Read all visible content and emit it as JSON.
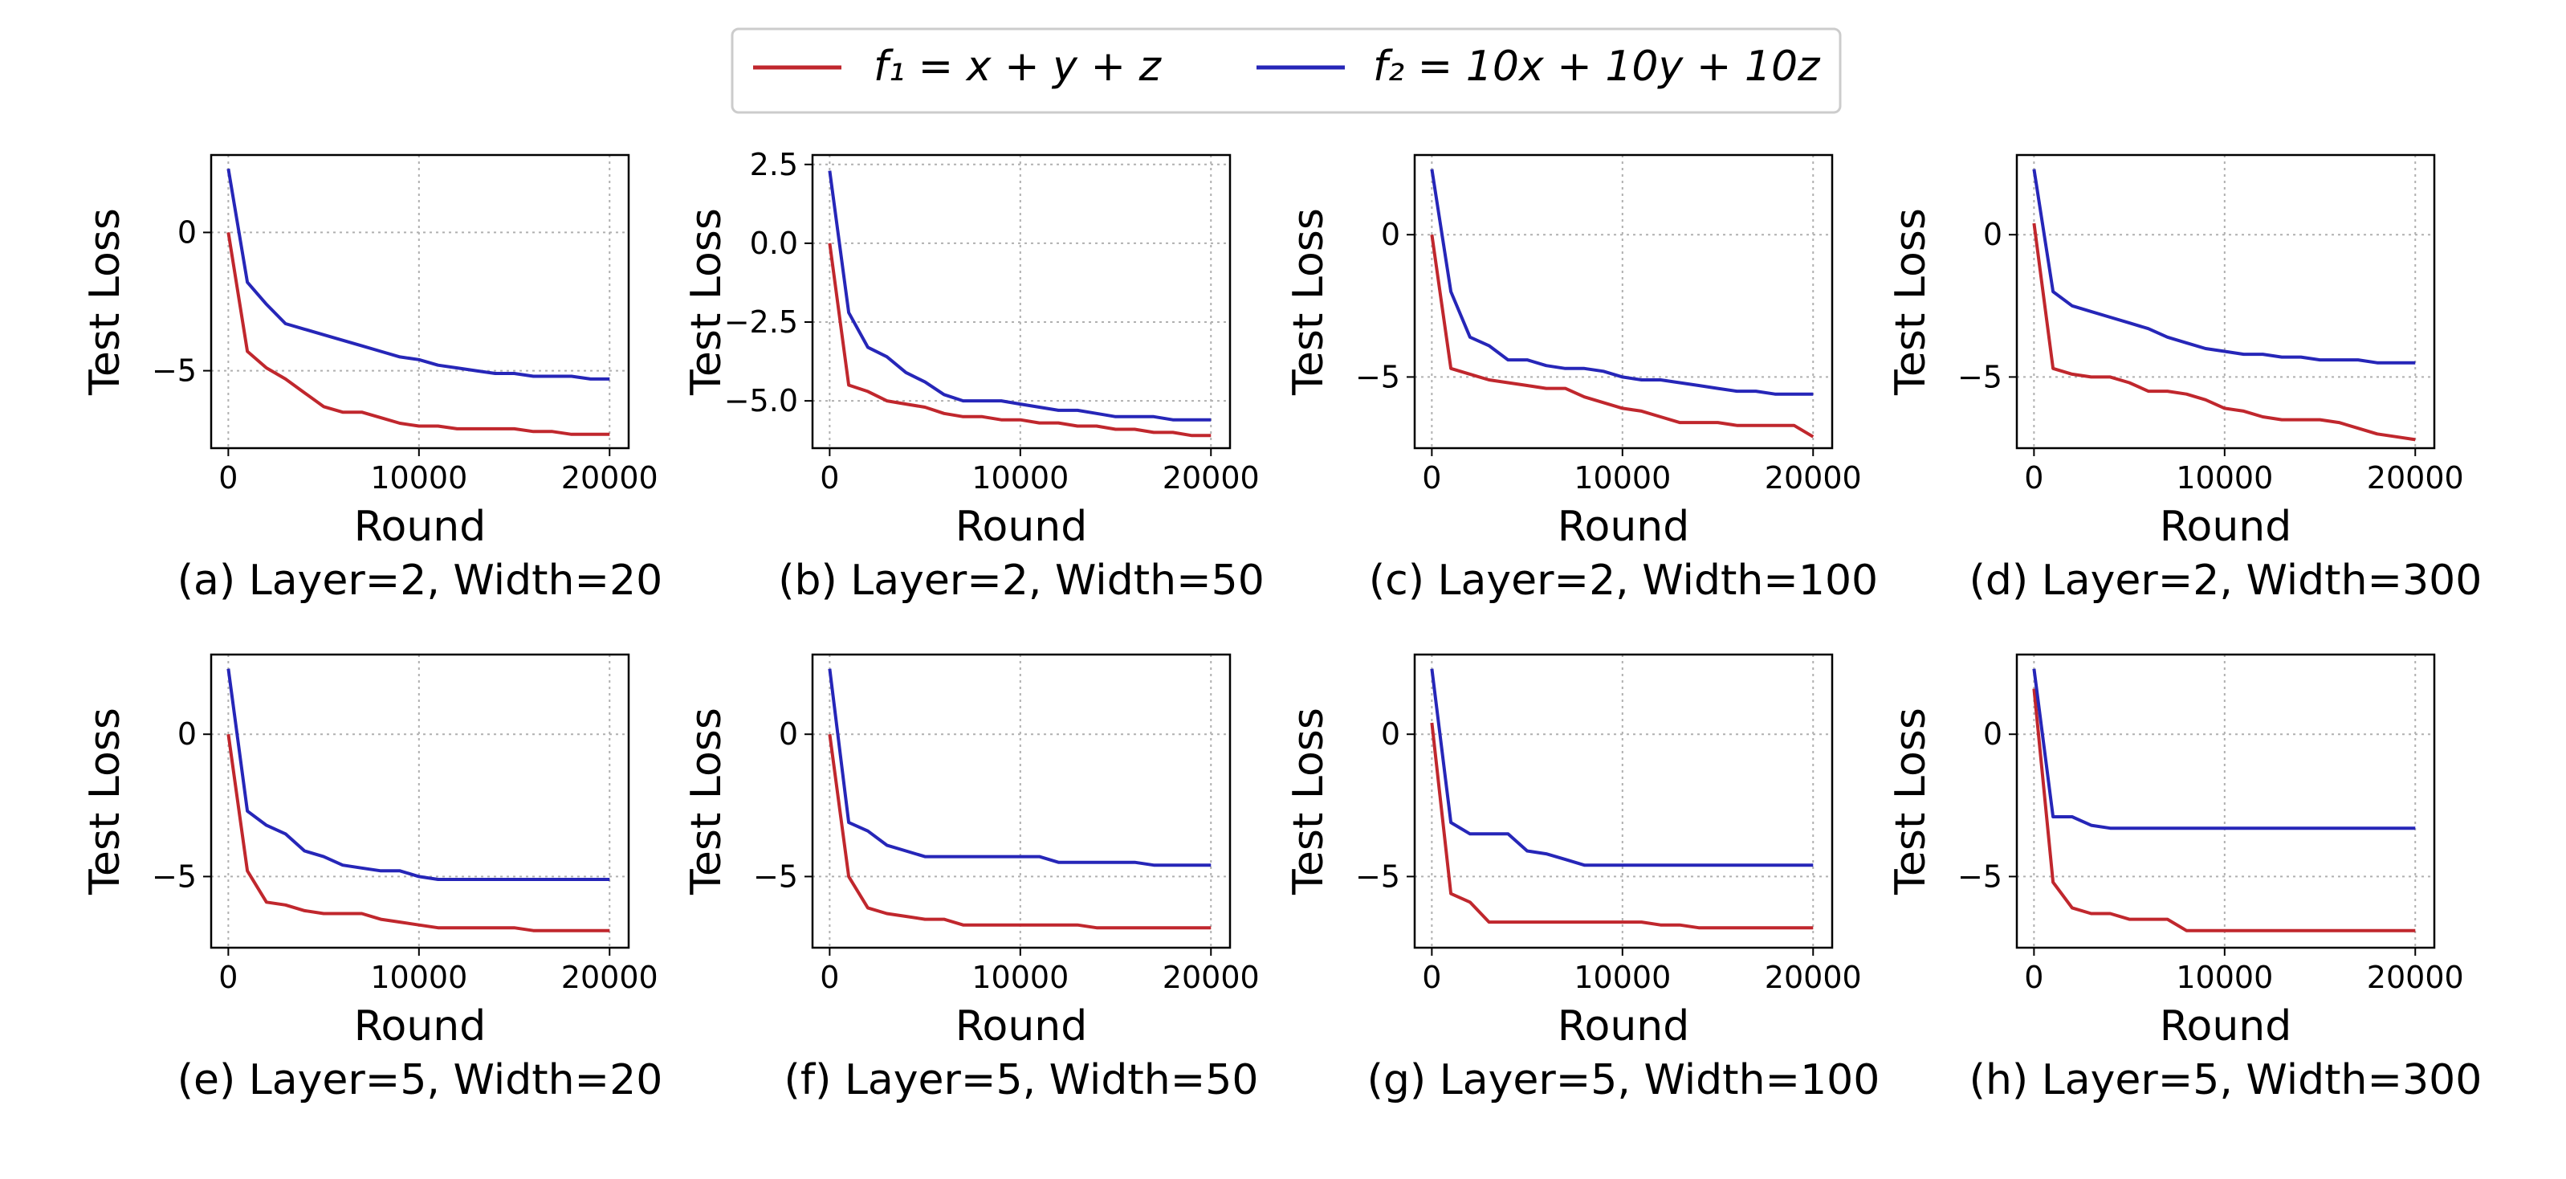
{
  "legend": {
    "entries": [
      {
        "label": "f₁ = x + y + z",
        "color": "#c0272d"
      },
      {
        "label": "f₂ = 10x + 10y + 10z",
        "color": "#2626b8"
      }
    ],
    "placement": "top-center"
  },
  "chart_data": [
    {
      "type": "line",
      "caption": "(a) Layer=2, Width=20",
      "xlabel": "Round",
      "ylabel": "Test Loss",
      "xlim": [
        -900,
        21000
      ],
      "ylim": [
        -7.8,
        2.8
      ],
      "xticks": [
        0,
        10000,
        20000
      ],
      "xtick_labels": [
        "0",
        "10000",
        "20000"
      ],
      "yticks": [
        0,
        -5
      ],
      "ytick_labels": [
        "0",
        "−5"
      ],
      "grid": true,
      "x": [
        0,
        1000,
        2000,
        3000,
        4000,
        5000,
        6000,
        7000,
        8000,
        9000,
        10000,
        11000,
        12000,
        13000,
        14000,
        15000,
        16000,
        17000,
        18000,
        19000,
        20000
      ],
      "series": [
        {
          "name": "f₁ = x + y + z",
          "color": "#c0272d",
          "values": [
            0.0,
            -4.3,
            -4.9,
            -5.3,
            -5.8,
            -6.3,
            -6.5,
            -6.5,
            -6.7,
            -6.9,
            -7.0,
            -7.0,
            -7.1,
            -7.1,
            -7.1,
            -7.1,
            -7.2,
            -7.2,
            -7.3,
            -7.3,
            -7.3
          ]
        },
        {
          "name": "f₂ = 10x + 10y + 10z",
          "color": "#2626b8",
          "values": [
            2.3,
            -1.8,
            -2.6,
            -3.3,
            -3.5,
            -3.7,
            -3.9,
            -4.1,
            -4.3,
            -4.5,
            -4.6,
            -4.8,
            -4.9,
            -5.0,
            -5.1,
            -5.1,
            -5.2,
            -5.2,
            -5.2,
            -5.3,
            -5.3
          ]
        }
      ]
    },
    {
      "type": "line",
      "caption": "(b) Layer=2, Width=50",
      "xlabel": "Round",
      "ylabel": "Test Loss",
      "xlim": [
        -900,
        21000
      ],
      "ylim": [
        -6.5,
        2.8
      ],
      "xticks": [
        0,
        10000,
        20000
      ],
      "xtick_labels": [
        "0",
        "10000",
        "20000"
      ],
      "yticks": [
        2.5,
        0,
        -2.5,
        -5
      ],
      "ytick_labels": [
        "2.5",
        "0.0",
        "−2.5",
        "−5.0"
      ],
      "grid": true,
      "x": [
        0,
        1000,
        2000,
        3000,
        4000,
        5000,
        6000,
        7000,
        8000,
        9000,
        10000,
        11000,
        12000,
        13000,
        14000,
        15000,
        16000,
        17000,
        18000,
        19000,
        20000
      ],
      "series": [
        {
          "name": "f₁ = x + y + z",
          "color": "#c0272d",
          "values": [
            0.0,
            -4.5,
            -4.7,
            -5.0,
            -5.1,
            -5.2,
            -5.4,
            -5.5,
            -5.5,
            -5.6,
            -5.6,
            -5.7,
            -5.7,
            -5.8,
            -5.8,
            -5.9,
            -5.9,
            -6.0,
            -6.0,
            -6.1,
            -6.1
          ]
        },
        {
          "name": "f₂ = 10x + 10y + 10z",
          "color": "#2626b8",
          "values": [
            2.3,
            -2.2,
            -3.3,
            -3.6,
            -4.1,
            -4.4,
            -4.8,
            -5.0,
            -5.0,
            -5.0,
            -5.1,
            -5.2,
            -5.3,
            -5.3,
            -5.4,
            -5.5,
            -5.5,
            -5.5,
            -5.6,
            -5.6,
            -5.6
          ]
        }
      ]
    },
    {
      "type": "line",
      "caption": "(c) Layer=2, Width=100",
      "xlabel": "Round",
      "ylabel": "Test Loss",
      "xlim": [
        -900,
        21000
      ],
      "ylim": [
        -7.5,
        2.8
      ],
      "xticks": [
        0,
        10000,
        20000
      ],
      "xtick_labels": [
        "0",
        "10000",
        "20000"
      ],
      "yticks": [
        0,
        -5
      ],
      "ytick_labels": [
        "0",
        "−5"
      ],
      "grid": true,
      "x": [
        0,
        1000,
        2000,
        3000,
        4000,
        5000,
        6000,
        7000,
        8000,
        9000,
        10000,
        11000,
        12000,
        13000,
        14000,
        15000,
        16000,
        17000,
        18000,
        19000,
        20000
      ],
      "series": [
        {
          "name": "f₁ = x + y + z",
          "color": "#c0272d",
          "values": [
            0.0,
            -4.7,
            -4.9,
            -5.1,
            -5.2,
            -5.3,
            -5.4,
            -5.4,
            -5.7,
            -5.9,
            -6.1,
            -6.2,
            -6.4,
            -6.6,
            -6.6,
            -6.6,
            -6.7,
            -6.7,
            -6.7,
            -6.7,
            -7.1
          ]
        },
        {
          "name": "f₂ = 10x + 10y + 10z",
          "color": "#2626b8",
          "values": [
            2.3,
            -2.0,
            -3.6,
            -3.9,
            -4.4,
            -4.4,
            -4.6,
            -4.7,
            -4.7,
            -4.8,
            -5.0,
            -5.1,
            -5.1,
            -5.2,
            -5.3,
            -5.4,
            -5.5,
            -5.5,
            -5.6,
            -5.6,
            -5.6
          ]
        }
      ]
    },
    {
      "type": "line",
      "caption": "(d) Layer=2, Width=300",
      "xlabel": "Round",
      "ylabel": "Test Loss",
      "xlim": [
        -900,
        21000
      ],
      "ylim": [
        -7.5,
        2.8
      ],
      "xticks": [
        0,
        10000,
        20000
      ],
      "xtick_labels": [
        "0",
        "10000",
        "20000"
      ],
      "yticks": [
        0,
        -5
      ],
      "ytick_labels": [
        "0",
        "−5"
      ],
      "grid": true,
      "x": [
        0,
        1000,
        2000,
        3000,
        4000,
        5000,
        6000,
        7000,
        8000,
        9000,
        10000,
        11000,
        12000,
        13000,
        14000,
        15000,
        16000,
        17000,
        18000,
        19000,
        20000
      ],
      "series": [
        {
          "name": "f₁ = x + y + z",
          "color": "#c0272d",
          "values": [
            0.4,
            -4.7,
            -4.9,
            -5.0,
            -5.0,
            -5.2,
            -5.5,
            -5.5,
            -5.6,
            -5.8,
            -6.1,
            -6.2,
            -6.4,
            -6.5,
            -6.5,
            -6.5,
            -6.6,
            -6.8,
            -7.0,
            -7.1,
            -7.2
          ]
        },
        {
          "name": "f₂ = 10x + 10y + 10z",
          "color": "#2626b8",
          "values": [
            2.3,
            -2.0,
            -2.5,
            -2.7,
            -2.9,
            -3.1,
            -3.3,
            -3.6,
            -3.8,
            -4.0,
            -4.1,
            -4.2,
            -4.2,
            -4.3,
            -4.3,
            -4.4,
            -4.4,
            -4.4,
            -4.5,
            -4.5,
            -4.5
          ]
        }
      ]
    },
    {
      "type": "line",
      "caption": "(e) Layer=5, Width=20",
      "xlabel": "Round",
      "ylabel": "Test Loss",
      "xlim": [
        -900,
        21000
      ],
      "ylim": [
        -7.5,
        2.8
      ],
      "xticks": [
        0,
        10000,
        20000
      ],
      "xtick_labels": [
        "0",
        "10000",
        "20000"
      ],
      "yticks": [
        0,
        -5
      ],
      "ytick_labels": [
        "0",
        "−5"
      ],
      "grid": true,
      "x": [
        0,
        1000,
        2000,
        3000,
        4000,
        5000,
        6000,
        7000,
        8000,
        9000,
        10000,
        11000,
        12000,
        13000,
        14000,
        15000,
        16000,
        17000,
        18000,
        19000,
        20000
      ],
      "series": [
        {
          "name": "f₁ = x + y + z",
          "color": "#c0272d",
          "values": [
            0.0,
            -4.8,
            -5.9,
            -6.0,
            -6.2,
            -6.3,
            -6.3,
            -6.3,
            -6.5,
            -6.6,
            -6.7,
            -6.8,
            -6.8,
            -6.8,
            -6.8,
            -6.8,
            -6.9,
            -6.9,
            -6.9,
            -6.9,
            -6.9
          ]
        },
        {
          "name": "f₂ = 10x + 10y + 10z",
          "color": "#2626b8",
          "values": [
            2.3,
            -2.7,
            -3.2,
            -3.5,
            -4.1,
            -4.3,
            -4.6,
            -4.7,
            -4.8,
            -4.8,
            -5.0,
            -5.1,
            -5.1,
            -5.1,
            -5.1,
            -5.1,
            -5.1,
            -5.1,
            -5.1,
            -5.1,
            -5.1
          ]
        }
      ]
    },
    {
      "type": "line",
      "caption": "(f) Layer=5, Width=50",
      "xlabel": "Round",
      "ylabel": "Test Loss",
      "xlim": [
        -900,
        21000
      ],
      "ylim": [
        -7.5,
        2.8
      ],
      "xticks": [
        0,
        10000,
        20000
      ],
      "xtick_labels": [
        "0",
        "10000",
        "20000"
      ],
      "yticks": [
        0,
        -5
      ],
      "ytick_labels": [
        "0",
        "−5"
      ],
      "grid": true,
      "x": [
        0,
        1000,
        2000,
        3000,
        4000,
        5000,
        6000,
        7000,
        8000,
        9000,
        10000,
        11000,
        12000,
        13000,
        14000,
        15000,
        16000,
        17000,
        18000,
        19000,
        20000
      ],
      "series": [
        {
          "name": "f₁ = x + y + z",
          "color": "#c0272d",
          "values": [
            0.0,
            -5.0,
            -6.1,
            -6.3,
            -6.4,
            -6.5,
            -6.5,
            -6.7,
            -6.7,
            -6.7,
            -6.7,
            -6.7,
            -6.7,
            -6.7,
            -6.8,
            -6.8,
            -6.8,
            -6.8,
            -6.8,
            -6.8,
            -6.8
          ]
        },
        {
          "name": "f₂ = 10x + 10y + 10z",
          "color": "#2626b8",
          "values": [
            2.3,
            -3.1,
            -3.4,
            -3.9,
            -4.1,
            -4.3,
            -4.3,
            -4.3,
            -4.3,
            -4.3,
            -4.3,
            -4.3,
            -4.5,
            -4.5,
            -4.5,
            -4.5,
            -4.5,
            -4.6,
            -4.6,
            -4.6,
            -4.6
          ]
        }
      ]
    },
    {
      "type": "line",
      "caption": "(g) Layer=5, Width=100",
      "xlabel": "Round",
      "ylabel": "Test Loss",
      "xlim": [
        -900,
        21000
      ],
      "ylim": [
        -7.5,
        2.8
      ],
      "xticks": [
        0,
        10000,
        20000
      ],
      "xtick_labels": [
        "0",
        "10000",
        "20000"
      ],
      "yticks": [
        0,
        -5
      ],
      "ytick_labels": [
        "0",
        "−5"
      ],
      "grid": true,
      "x": [
        0,
        1000,
        2000,
        3000,
        4000,
        5000,
        6000,
        7000,
        8000,
        9000,
        10000,
        11000,
        12000,
        13000,
        14000,
        15000,
        16000,
        17000,
        18000,
        19000,
        20000
      ],
      "series": [
        {
          "name": "f₁ = x + y + z",
          "color": "#c0272d",
          "values": [
            0.4,
            -5.6,
            -5.9,
            -6.6,
            -6.6,
            -6.6,
            -6.6,
            -6.6,
            -6.6,
            -6.6,
            -6.6,
            -6.6,
            -6.7,
            -6.7,
            -6.8,
            -6.8,
            -6.8,
            -6.8,
            -6.8,
            -6.8,
            -6.8
          ]
        },
        {
          "name": "f₂ = 10x + 10y + 10z",
          "color": "#2626b8",
          "values": [
            2.3,
            -3.1,
            -3.5,
            -3.5,
            -3.5,
            -4.1,
            -4.2,
            -4.4,
            -4.6,
            -4.6,
            -4.6,
            -4.6,
            -4.6,
            -4.6,
            -4.6,
            -4.6,
            -4.6,
            -4.6,
            -4.6,
            -4.6,
            -4.6
          ]
        }
      ]
    },
    {
      "type": "line",
      "caption": "(h) Layer=5, Width=300",
      "xlabel": "Round",
      "ylabel": "Test Loss",
      "xlim": [
        -900,
        21000
      ],
      "ylim": [
        -7.5,
        2.8
      ],
      "xticks": [
        0,
        10000,
        20000
      ],
      "xtick_labels": [
        "0",
        "10000",
        "20000"
      ],
      "yticks": [
        0,
        -5
      ],
      "ytick_labels": [
        "0",
        "−5"
      ],
      "grid": true,
      "x": [
        0,
        1000,
        2000,
        3000,
        4000,
        5000,
        6000,
        7000,
        8000,
        9000,
        10000,
        11000,
        12000,
        13000,
        14000,
        15000,
        16000,
        17000,
        18000,
        19000,
        20000
      ],
      "series": [
        {
          "name": "f₁ = x + y + z",
          "color": "#c0272d",
          "values": [
            1.6,
            -5.2,
            -6.1,
            -6.3,
            -6.3,
            -6.5,
            -6.5,
            -6.5,
            -6.9,
            -6.9,
            -6.9,
            -6.9,
            -6.9,
            -6.9,
            -6.9,
            -6.9,
            -6.9,
            -6.9,
            -6.9,
            -6.9,
            -6.9
          ]
        },
        {
          "name": "f₂ = 10x + 10y + 10z",
          "color": "#2626b8",
          "values": [
            2.3,
            -2.9,
            -2.9,
            -3.2,
            -3.3,
            -3.3,
            -3.3,
            -3.3,
            -3.3,
            -3.3,
            -3.3,
            -3.3,
            -3.3,
            -3.3,
            -3.3,
            -3.3,
            -3.3,
            -3.3,
            -3.3,
            -3.3,
            -3.3
          ]
        }
      ]
    }
  ]
}
